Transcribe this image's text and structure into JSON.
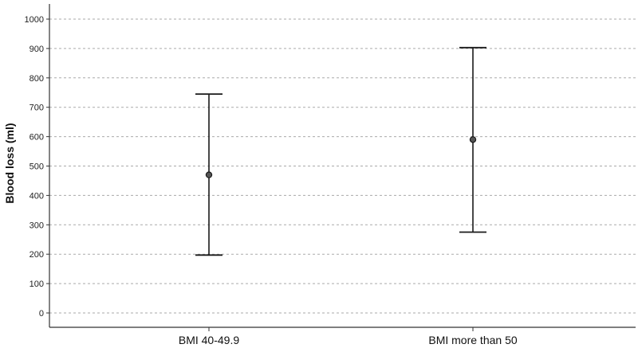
{
  "chart_data": {
    "type": "errorbar",
    "title": "",
    "xlabel": "",
    "ylabel": "Blood loss (ml)",
    "ylim": [
      -50,
      1050
    ],
    "yticks": [
      0,
      100,
      200,
      300,
      400,
      500,
      600,
      700,
      800,
      900,
      1000
    ],
    "grid": "horizontal-dashed",
    "categories": [
      "BMI 40-49.9",
      "BMI more than 50"
    ],
    "series": [
      {
        "mean": [
          470,
          590
        ],
        "lower": [
          197,
          275
        ],
        "upper": [
          745,
          903
        ]
      }
    ],
    "colors": {
      "line": "#1a1a1a",
      "marker_fill": "#555555",
      "grid": "#aaaaaa",
      "axis": "#333333"
    }
  }
}
